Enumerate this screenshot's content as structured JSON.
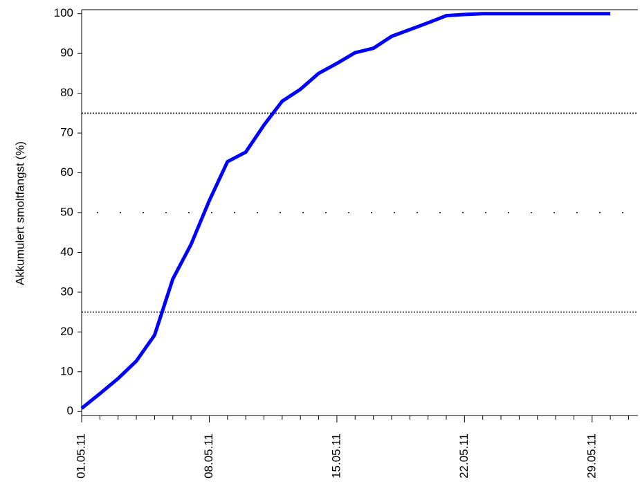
{
  "chart_data": {
    "type": "line",
    "y_label": "Akkumulert smoltfangst (%)",
    "categories": [
      "01.05.11",
      null,
      null,
      null,
      null,
      null,
      null,
      "08.05.11",
      null,
      null,
      null,
      null,
      null,
      null,
      "15.05.11",
      null,
      null,
      null,
      null,
      null,
      null,
      "22.05.11",
      null,
      null,
      null,
      null,
      null,
      null,
      "29.05.11",
      null,
      null
    ],
    "series": [
      {
        "color": "#0000ff",
        "values": [
          0.8,
          4.5,
          8.3,
          12.7,
          19.2,
          33.3,
          42,
          53,
          62.8,
          65.2,
          72,
          78,
          81,
          85,
          87.5,
          90.2,
          91.3,
          94.3,
          96,
          97.7,
          99.5,
          99.8,
          100,
          100,
          100,
          100,
          100,
          100,
          100,
          100,
          null
        ]
      }
    ],
    "ylim": [
      -1,
      101
    ],
    "yticks": [
      0,
      10,
      20,
      30,
      40,
      50,
      60,
      70,
      80,
      90,
      100
    ],
    "reference_lines": [
      25,
      50,
      75
    ]
  }
}
